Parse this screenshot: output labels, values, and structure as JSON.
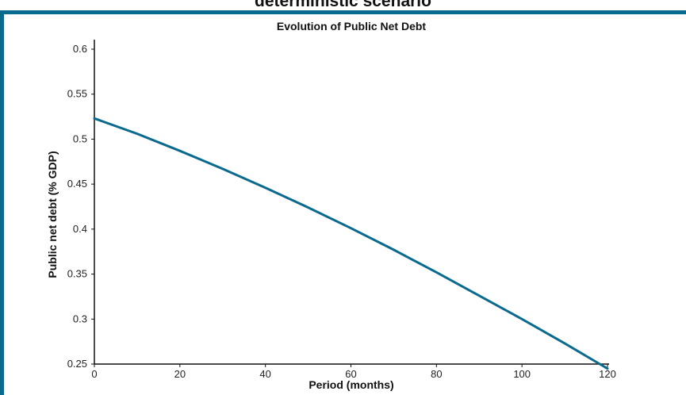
{
  "header": {
    "title": "deterministic scenario"
  },
  "colors": {
    "frame": "#0a6a8e",
    "series": "#0a6a8e",
    "axis": "#111111"
  },
  "chart_data": {
    "type": "line",
    "title": "Evolution of Public Net Debt",
    "xlabel": "Period (months)",
    "ylabel": "Public net debt (% GDP)",
    "xlim": [
      0,
      120
    ],
    "ylim": [
      0.25,
      0.6
    ],
    "xticks": [
      0,
      20,
      40,
      60,
      80,
      100,
      120
    ],
    "yticks": [
      0.25,
      0.3,
      0.35,
      0.4,
      0.45,
      0.5,
      0.55,
      0.6
    ],
    "xtick_labels": [
      "0",
      "20",
      "40",
      "60",
      "80",
      "100",
      "120"
    ],
    "ytick_labels": [
      "0.25",
      "0.3",
      "0.35",
      "0.4",
      "0.45",
      "0.5",
      "0.55",
      "0.6"
    ],
    "grid": false,
    "legend": "none",
    "series": [
      {
        "x": [
          0,
          10,
          20,
          30,
          40,
          50,
          60,
          70,
          80,
          90,
          100,
          110,
          120
        ],
        "values": [
          0.523,
          0.506,
          0.487,
          0.467,
          0.446,
          0.424,
          0.401,
          0.377,
          0.352,
          0.326,
          0.3,
          0.273,
          0.245
        ]
      }
    ]
  }
}
